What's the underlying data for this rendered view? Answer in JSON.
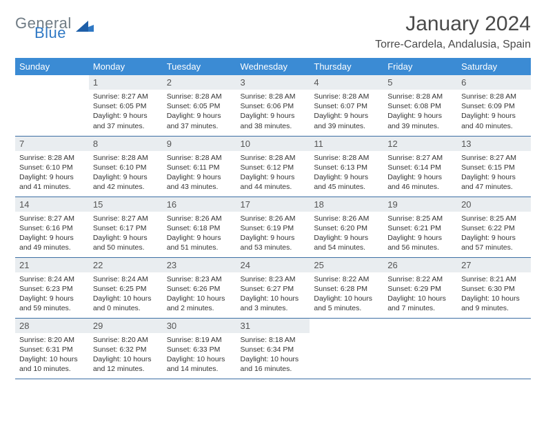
{
  "brand": {
    "general": "General",
    "blue": "Blue"
  },
  "title": "January 2024",
  "location": "Torre-Cardela, Andalusia, Spain",
  "colors": {
    "header_bg": "#3b8bd4",
    "header_text": "#ffffff",
    "daynum_bg": "#e9edf0",
    "border": "#3b6ea3",
    "logo_gray": "#6f7b84",
    "logo_blue": "#2f78c4"
  },
  "day_headers": [
    "Sunday",
    "Monday",
    "Tuesday",
    "Wednesday",
    "Thursday",
    "Friday",
    "Saturday"
  ],
  "weeks": [
    [
      {
        "num": "",
        "lines": []
      },
      {
        "num": "1",
        "lines": [
          "Sunrise: 8:27 AM",
          "Sunset: 6:05 PM",
          "Daylight: 9 hours",
          "and 37 minutes."
        ]
      },
      {
        "num": "2",
        "lines": [
          "Sunrise: 8:28 AM",
          "Sunset: 6:05 PM",
          "Daylight: 9 hours",
          "and 37 minutes."
        ]
      },
      {
        "num": "3",
        "lines": [
          "Sunrise: 8:28 AM",
          "Sunset: 6:06 PM",
          "Daylight: 9 hours",
          "and 38 minutes."
        ]
      },
      {
        "num": "4",
        "lines": [
          "Sunrise: 8:28 AM",
          "Sunset: 6:07 PM",
          "Daylight: 9 hours",
          "and 39 minutes."
        ]
      },
      {
        "num": "5",
        "lines": [
          "Sunrise: 8:28 AM",
          "Sunset: 6:08 PM",
          "Daylight: 9 hours",
          "and 39 minutes."
        ]
      },
      {
        "num": "6",
        "lines": [
          "Sunrise: 8:28 AM",
          "Sunset: 6:09 PM",
          "Daylight: 9 hours",
          "and 40 minutes."
        ]
      }
    ],
    [
      {
        "num": "7",
        "lines": [
          "Sunrise: 8:28 AM",
          "Sunset: 6:10 PM",
          "Daylight: 9 hours",
          "and 41 minutes."
        ]
      },
      {
        "num": "8",
        "lines": [
          "Sunrise: 8:28 AM",
          "Sunset: 6:10 PM",
          "Daylight: 9 hours",
          "and 42 minutes."
        ]
      },
      {
        "num": "9",
        "lines": [
          "Sunrise: 8:28 AM",
          "Sunset: 6:11 PM",
          "Daylight: 9 hours",
          "and 43 minutes."
        ]
      },
      {
        "num": "10",
        "lines": [
          "Sunrise: 8:28 AM",
          "Sunset: 6:12 PM",
          "Daylight: 9 hours",
          "and 44 minutes."
        ]
      },
      {
        "num": "11",
        "lines": [
          "Sunrise: 8:28 AM",
          "Sunset: 6:13 PM",
          "Daylight: 9 hours",
          "and 45 minutes."
        ]
      },
      {
        "num": "12",
        "lines": [
          "Sunrise: 8:27 AM",
          "Sunset: 6:14 PM",
          "Daylight: 9 hours",
          "and 46 minutes."
        ]
      },
      {
        "num": "13",
        "lines": [
          "Sunrise: 8:27 AM",
          "Sunset: 6:15 PM",
          "Daylight: 9 hours",
          "and 47 minutes."
        ]
      }
    ],
    [
      {
        "num": "14",
        "lines": [
          "Sunrise: 8:27 AM",
          "Sunset: 6:16 PM",
          "Daylight: 9 hours",
          "and 49 minutes."
        ]
      },
      {
        "num": "15",
        "lines": [
          "Sunrise: 8:27 AM",
          "Sunset: 6:17 PM",
          "Daylight: 9 hours",
          "and 50 minutes."
        ]
      },
      {
        "num": "16",
        "lines": [
          "Sunrise: 8:26 AM",
          "Sunset: 6:18 PM",
          "Daylight: 9 hours",
          "and 51 minutes."
        ]
      },
      {
        "num": "17",
        "lines": [
          "Sunrise: 8:26 AM",
          "Sunset: 6:19 PM",
          "Daylight: 9 hours",
          "and 53 minutes."
        ]
      },
      {
        "num": "18",
        "lines": [
          "Sunrise: 8:26 AM",
          "Sunset: 6:20 PM",
          "Daylight: 9 hours",
          "and 54 minutes."
        ]
      },
      {
        "num": "19",
        "lines": [
          "Sunrise: 8:25 AM",
          "Sunset: 6:21 PM",
          "Daylight: 9 hours",
          "and 56 minutes."
        ]
      },
      {
        "num": "20",
        "lines": [
          "Sunrise: 8:25 AM",
          "Sunset: 6:22 PM",
          "Daylight: 9 hours",
          "and 57 minutes."
        ]
      }
    ],
    [
      {
        "num": "21",
        "lines": [
          "Sunrise: 8:24 AM",
          "Sunset: 6:23 PM",
          "Daylight: 9 hours",
          "and 59 minutes."
        ]
      },
      {
        "num": "22",
        "lines": [
          "Sunrise: 8:24 AM",
          "Sunset: 6:25 PM",
          "Daylight: 10 hours",
          "and 0 minutes."
        ]
      },
      {
        "num": "23",
        "lines": [
          "Sunrise: 8:23 AM",
          "Sunset: 6:26 PM",
          "Daylight: 10 hours",
          "and 2 minutes."
        ]
      },
      {
        "num": "24",
        "lines": [
          "Sunrise: 8:23 AM",
          "Sunset: 6:27 PM",
          "Daylight: 10 hours",
          "and 3 minutes."
        ]
      },
      {
        "num": "25",
        "lines": [
          "Sunrise: 8:22 AM",
          "Sunset: 6:28 PM",
          "Daylight: 10 hours",
          "and 5 minutes."
        ]
      },
      {
        "num": "26",
        "lines": [
          "Sunrise: 8:22 AM",
          "Sunset: 6:29 PM",
          "Daylight: 10 hours",
          "and 7 minutes."
        ]
      },
      {
        "num": "27",
        "lines": [
          "Sunrise: 8:21 AM",
          "Sunset: 6:30 PM",
          "Daylight: 10 hours",
          "and 9 minutes."
        ]
      }
    ],
    [
      {
        "num": "28",
        "lines": [
          "Sunrise: 8:20 AM",
          "Sunset: 6:31 PM",
          "Daylight: 10 hours",
          "and 10 minutes."
        ]
      },
      {
        "num": "29",
        "lines": [
          "Sunrise: 8:20 AM",
          "Sunset: 6:32 PM",
          "Daylight: 10 hours",
          "and 12 minutes."
        ]
      },
      {
        "num": "30",
        "lines": [
          "Sunrise: 8:19 AM",
          "Sunset: 6:33 PM",
          "Daylight: 10 hours",
          "and 14 minutes."
        ]
      },
      {
        "num": "31",
        "lines": [
          "Sunrise: 8:18 AM",
          "Sunset: 6:34 PM",
          "Daylight: 10 hours",
          "and 16 minutes."
        ]
      },
      {
        "num": "",
        "lines": []
      },
      {
        "num": "",
        "lines": []
      },
      {
        "num": "",
        "lines": []
      }
    ]
  ]
}
